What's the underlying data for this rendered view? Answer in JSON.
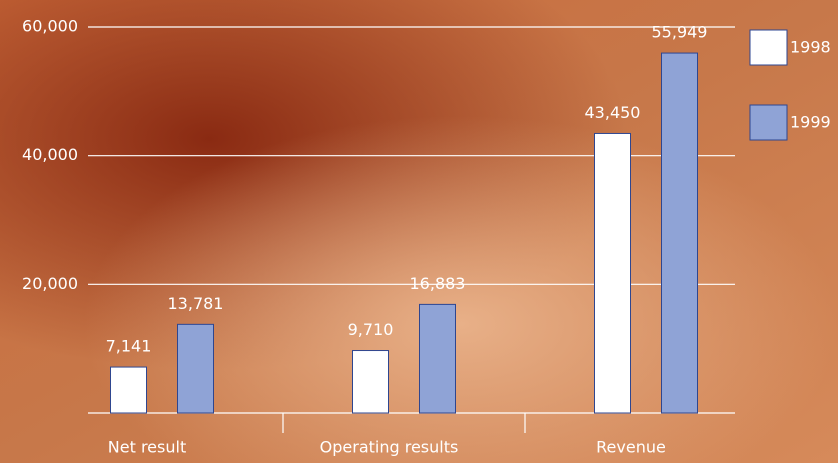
{
  "chart_data": {
    "type": "bar",
    "categories": [
      "Net result",
      "Operating results",
      "Revenue"
    ],
    "series": [
      {
        "name": "1998",
        "color": "#ffffff",
        "values": [
          7141,
          9710,
          43450
        ],
        "value_labels": [
          "7,141",
          "9,710",
          "43,450"
        ]
      },
      {
        "name": "1999",
        "color": "#8fa3d6",
        "values": [
          13781,
          16883,
          55949
        ],
        "value_labels": [
          "13,781",
          "16,883",
          "55,949"
        ]
      }
    ],
    "ylim": [
      0,
      60000
    ],
    "yticks": [
      {
        "value": 20000,
        "label": "20,000"
      },
      {
        "value": 40000,
        "label": "40,000"
      },
      {
        "value": 60000,
        "label": "60,000"
      }
    ],
    "grid": true
  }
}
